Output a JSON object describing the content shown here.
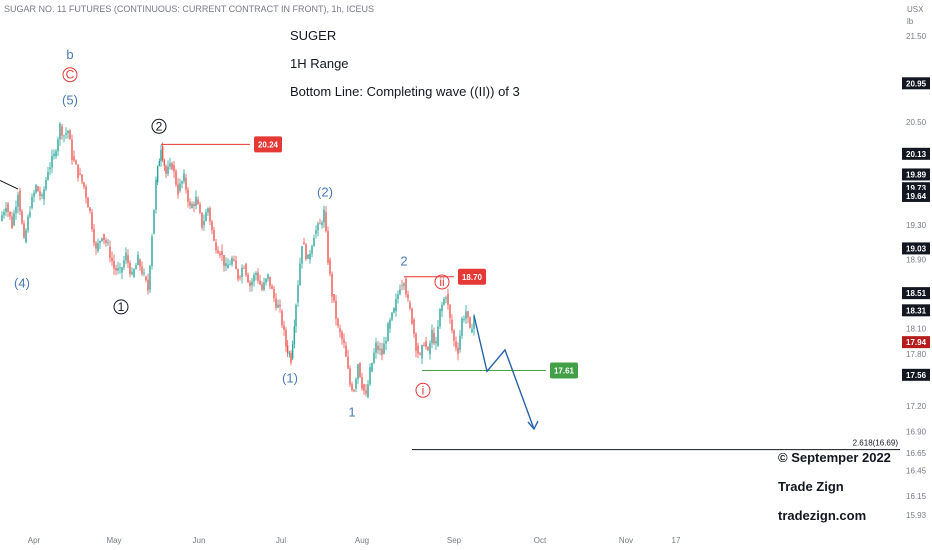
{
  "header": {
    "symbol_line": "SUGAR NO. 11 FUTURES (CONTINUOUS: CURRENT CONTRACT IN FRONT), 1h, ICEUS"
  },
  "annotations": {
    "title": "SUGER",
    "range": "1H Range",
    "bottom_line": "Bottom Line: Completing wave ((II)) of 3",
    "copyright": "© Septemper 2022",
    "brand": "Trade Zign",
    "site": "tradezign.com"
  },
  "chart_data": {
    "type": "candlestick",
    "unit_lines": [
      "USX",
      "lb"
    ],
    "y_ticks": [
      21.5,
      20.95,
      20.5,
      20.13,
      19.89,
      19.73,
      19.64,
      19.3,
      19.03,
      18.9,
      18.51,
      18.31,
      18.1,
      17.94,
      17.8,
      17.56,
      17.2,
      16.9,
      16.65,
      16.45,
      16.15,
      15.93
    ],
    "y_tick_labels": [
      "21.50",
      "20.95",
      "20.50",
      "20.13",
      "19.89",
      "19.73",
      "19.64",
      "19.30",
      "19.03",
      "18.90",
      "18.51",
      "18.31",
      "18.10",
      "17.94",
      "17.80",
      "17.56",
      "17.20",
      "16.90",
      "16.65",
      "16.45",
      "16.15",
      "15.93"
    ],
    "y_badges_dark": [
      20.95,
      20.13,
      19.89,
      19.73,
      19.64,
      19.03,
      18.51,
      18.31,
      17.56
    ],
    "y_badge_current": 17.94,
    "ylim": [
      15.85,
      21.7
    ],
    "x_ticks": [
      "Apr",
      "May",
      "Jun",
      "Jul",
      "Aug",
      "Sep",
      "Oct",
      "Nov",
      "17"
    ],
    "price_path": [
      [
        0,
        19.35
      ],
      [
        6,
        19.55
      ],
      [
        12,
        19.3
      ],
      [
        18,
        19.7
      ],
      [
        24,
        19.1
      ],
      [
        30,
        19.5
      ],
      [
        36,
        19.75
      ],
      [
        42,
        19.6
      ],
      [
        48,
        19.95
      ],
      [
        54,
        20.1
      ],
      [
        60,
        20.45
      ],
      [
        64,
        20.35
      ],
      [
        68,
        20.4
      ],
      [
        72,
        20.1
      ],
      [
        78,
        19.9
      ],
      [
        84,
        19.75
      ],
      [
        90,
        19.45
      ],
      [
        96,
        19.0
      ],
      [
        102,
        19.2
      ],
      [
        108,
        19.05
      ],
      [
        114,
        18.8
      ],
      [
        120,
        18.75
      ],
      [
        126,
        18.95
      ],
      [
        132,
        18.7
      ],
      [
        138,
        18.9
      ],
      [
        144,
        18.7
      ],
      [
        148,
        18.55
      ],
      [
        152,
        19.2
      ],
      [
        156,
        19.8
      ],
      [
        161,
        20.22
      ],
      [
        166,
        19.9
      ],
      [
        172,
        20.0
      ],
      [
        178,
        19.7
      ],
      [
        184,
        19.85
      ],
      [
        190,
        19.5
      ],
      [
        196,
        19.6
      ],
      [
        202,
        19.3
      ],
      [
        208,
        19.5
      ],
      [
        214,
        19.1
      ],
      [
        220,
        19.0
      ],
      [
        226,
        18.8
      ],
      [
        232,
        18.9
      ],
      [
        238,
        18.7
      ],
      [
        244,
        18.85
      ],
      [
        250,
        18.6
      ],
      [
        256,
        18.75
      ],
      [
        262,
        18.55
      ],
      [
        268,
        18.7
      ],
      [
        274,
        18.45
      ],
      [
        280,
        18.3
      ],
      [
        286,
        17.9
      ],
      [
        291,
        17.75
      ],
      [
        296,
        18.4
      ],
      [
        302,
        19.1
      ],
      [
        308,
        18.9
      ],
      [
        314,
        19.2
      ],
      [
        320,
        19.3
      ],
      [
        324,
        19.45
      ],
      [
        328,
        18.9
      ],
      [
        332,
        18.5
      ],
      [
        338,
        18.1
      ],
      [
        344,
        17.9
      ],
      [
        350,
        17.45
      ],
      [
        354,
        17.4
      ],
      [
        358,
        17.7
      ],
      [
        362,
        17.45
      ],
      [
        366,
        17.3
      ],
      [
        370,
        17.6
      ],
      [
        376,
        17.9
      ],
      [
        382,
        17.8
      ],
      [
        388,
        18.1
      ],
      [
        394,
        18.3
      ],
      [
        400,
        18.6
      ],
      [
        404,
        18.68
      ],
      [
        408,
        18.4
      ],
      [
        412,
        18.2
      ],
      [
        416,
        17.9
      ],
      [
        420,
        17.75
      ],
      [
        424,
        17.95
      ],
      [
        428,
        17.8
      ],
      [
        432,
        18.05
      ],
      [
        436,
        17.9
      ],
      [
        440,
        18.3
      ],
      [
        446,
        18.5
      ],
      [
        450,
        18.2
      ],
      [
        454,
        17.95
      ],
      [
        458,
        17.85
      ],
      [
        462,
        18.2
      ],
      [
        466,
        18.3
      ],
      [
        470,
        18.05
      ],
      [
        474,
        18.25
      ]
    ],
    "projection": [
      [
        474,
        18.25
      ],
      [
        487,
        17.6
      ],
      [
        505,
        17.85
      ],
      [
        534,
        16.93
      ]
    ],
    "levels": [
      {
        "label": "20.24",
        "value": 20.24,
        "x_start": 161,
        "x_end": 250,
        "color": "#e53935"
      },
      {
        "label": "18.70",
        "value": 18.7,
        "x_start": 404,
        "x_end": 454,
        "color": "#e53935"
      },
      {
        "label": "17.61",
        "value": 17.61,
        "x_start": 422,
        "x_end": 546,
        "color": "#43a047"
      }
    ],
    "fib": {
      "label": "2.618(16.69)",
      "value": 16.69
    },
    "wave_labels": [
      {
        "text": "b",
        "x": 70,
        "y": 21.28,
        "style": "blue"
      },
      {
        "text": "C",
        "x": 70,
        "y": 21.05,
        "style": "red-circle"
      },
      {
        "text": "(5)",
        "x": 70,
        "y": 20.75,
        "style": "blue"
      },
      {
        "text": "2",
        "x": 159,
        "y": 20.45,
        "style": "black-circle"
      },
      {
        "text": "(4)",
        "x": 22,
        "y": 18.62,
        "style": "blue"
      },
      {
        "text": "1",
        "x": 121,
        "y": 18.35,
        "style": "black-circle"
      },
      {
        "text": "(2)",
        "x": 325,
        "y": 19.68,
        "style": "blue"
      },
      {
        "text": "(1)",
        "x": 290,
        "y": 17.52,
        "style": "blue"
      },
      {
        "text": "2",
        "x": 404,
        "y": 18.88,
        "style": "blue"
      },
      {
        "text": "ii",
        "x": 442,
        "y": 18.64,
        "style": "red-circle"
      },
      {
        "text": "1",
        "x": 352,
        "y": 17.12,
        "style": "blue"
      },
      {
        "text": "i",
        "x": 423,
        "y": 17.38,
        "style": "red-circle"
      }
    ]
  }
}
